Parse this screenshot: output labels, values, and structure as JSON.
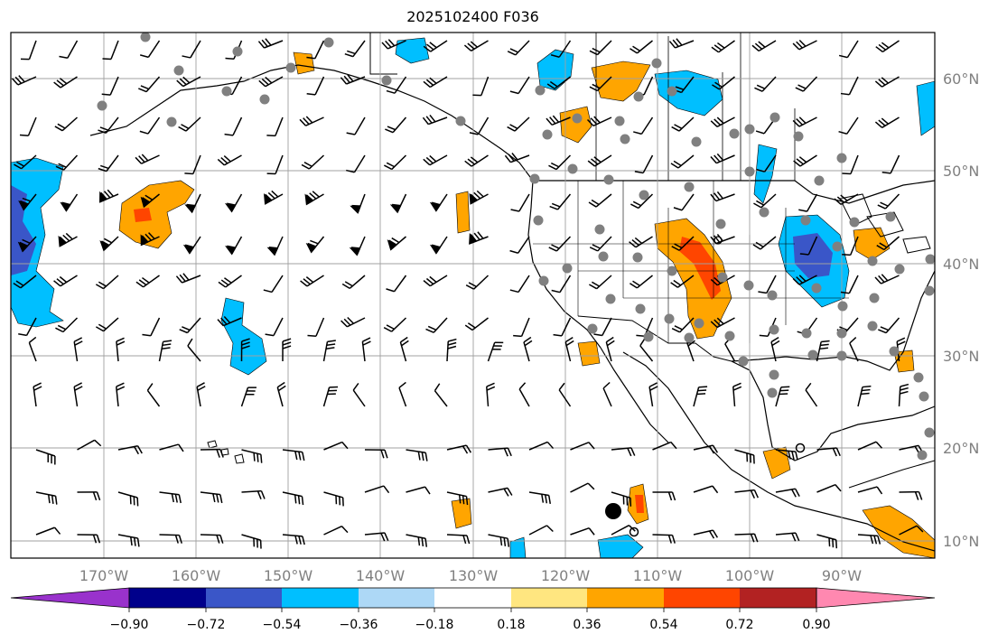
{
  "title": "2025102400 F036",
  "map": {
    "lat_labels": [
      "60°N",
      "50°N",
      "40°N",
      "30°N",
      "20°N",
      "10°N"
    ],
    "lon_labels": [
      "170°W",
      "160°W",
      "150°W",
      "140°W",
      "130°W",
      "120°W",
      "110°W",
      "100°W",
      "90°W"
    ],
    "contour_fill_colors": {
      "neg_strong": "#3a56c8",
      "neg_mid": "#00bfff",
      "neg_light": "#a6dcf8",
      "pos_light": "#ffe680",
      "pos_mid": "#ffa500",
      "pos_strong": "#ff4500"
    },
    "station_marker_color": "#808080",
    "wind_barb_color": "#000000"
  },
  "colorbar": {
    "tick_labels": [
      "−0.90",
      "−0.72",
      "−0.54",
      "−0.36",
      "−0.18",
      "0.18",
      "0.36",
      "0.54",
      "0.72",
      "0.90"
    ],
    "colors": [
      "#9932cc",
      "#00008b",
      "#3a56c8",
      "#00bfff",
      "#add8f6",
      "#ffffff",
      "#ffe680",
      "#ffa500",
      "#ff4500",
      "#b22222",
      "#ff88b0"
    ]
  }
}
